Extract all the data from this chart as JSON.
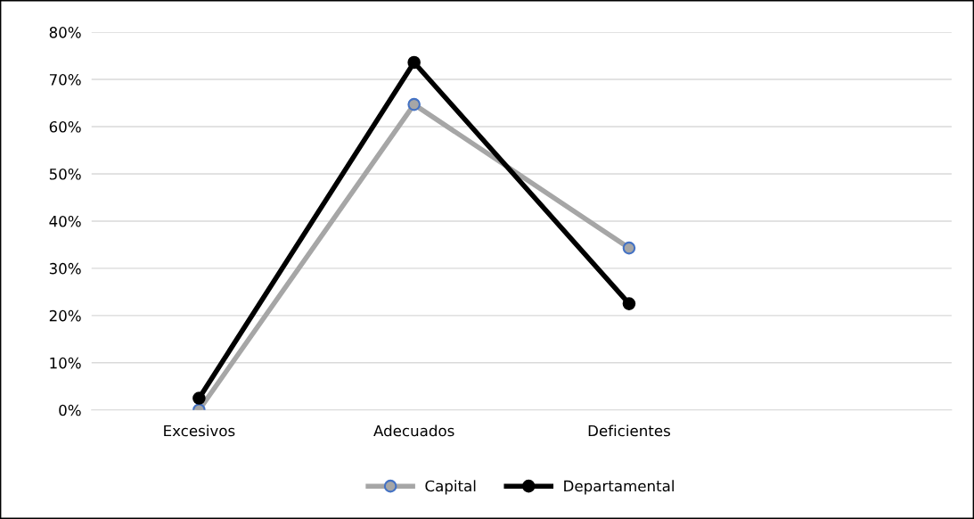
{
  "chart_data": {
    "type": "line",
    "categories": [
      "Excesivos",
      "Adecuados",
      "Deficientes",
      null
    ],
    "series": [
      {
        "name": "Capital",
        "color": "#a6a6a6",
        "values": [
          0,
          64.7,
          34.3,
          null
        ]
      },
      {
        "name": "Departamental",
        "color": "#000000",
        "values": [
          2.5,
          73.6,
          22.5,
          null
        ]
      }
    ],
    "ylim": [
      0,
      80
    ],
    "yticks": [
      {
        "value": 0,
        "label": "0%"
      },
      {
        "value": 10,
        "label": "10%"
      },
      {
        "value": 20,
        "label": "20%"
      },
      {
        "value": 30,
        "label": "30%"
      },
      {
        "value": 40,
        "label": "40%"
      },
      {
        "value": 50,
        "label": "50%"
      },
      {
        "value": 60,
        "label": "60%"
      },
      {
        "value": 70,
        "label": "70%"
      },
      {
        "value": 80,
        "label": "80%"
      }
    ],
    "grid": "y",
    "legend": "bottom",
    "marker": "circle",
    "line_style": "solid"
  }
}
